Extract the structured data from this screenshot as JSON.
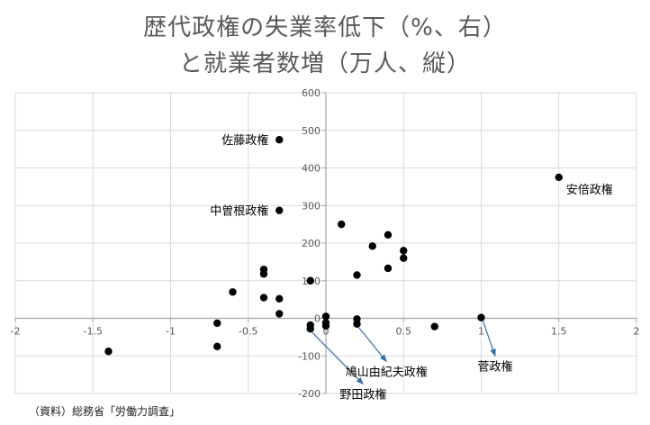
{
  "source": "（資料）総務省「労働力調査」",
  "chart_data": {
    "type": "scatter",
    "title_lines": [
      "歴代政権の失業率低下（%、右）",
      "と就業者数増（万人、縦）"
    ],
    "xlim": [
      -2,
      2
    ],
    "ylim": [
      -200,
      600
    ],
    "x_ticks": [
      -2,
      -1.5,
      -1,
      -0.5,
      0,
      0.5,
      1,
      1.5,
      2
    ],
    "x_tick_labels": [
      "-2",
      "-1.5",
      "-1",
      "-0.5",
      "0",
      "0.5",
      "1",
      "1.5",
      "2"
    ],
    "y_ticks": [
      -200,
      -100,
      0,
      100,
      200,
      300,
      400,
      500,
      600
    ],
    "y_tick_labels": [
      "-200",
      "-100",
      "0",
      "100",
      "200",
      "300",
      "400",
      "500",
      "600"
    ],
    "grid": true,
    "points": [
      {
        "x": -1.4,
        "y": -88
      },
      {
        "x": -0.7,
        "y": -13
      },
      {
        "x": -0.7,
        "y": -75
      },
      {
        "x": -0.6,
        "y": 70
      },
      {
        "x": -0.4,
        "y": 130
      },
      {
        "x": -0.4,
        "y": 118
      },
      {
        "x": -0.4,
        "y": 55
      },
      {
        "x": -0.3,
        "y": 475
      },
      {
        "x": -0.3,
        "y": 287
      },
      {
        "x": -0.3,
        "y": 52
      },
      {
        "x": -0.3,
        "y": 12
      },
      {
        "x": -0.1,
        "y": 100
      },
      {
        "x": -0.1,
        "y": -18
      },
      {
        "x": -0.1,
        "y": -28
      },
      {
        "x": 0.0,
        "y": 5
      },
      {
        "x": 0.0,
        "y": -12
      },
      {
        "x": 0.0,
        "y": -20
      },
      {
        "x": 0.1,
        "y": 250
      },
      {
        "x": 0.2,
        "y": 115
      },
      {
        "x": 0.2,
        "y": -2
      },
      {
        "x": 0.2,
        "y": -15
      },
      {
        "x": 0.3,
        "y": 192
      },
      {
        "x": 0.4,
        "y": 222
      },
      {
        "x": 0.4,
        "y": 133
      },
      {
        "x": 0.5,
        "y": 180
      },
      {
        "x": 0.5,
        "y": 160
      },
      {
        "x": 0.7,
        "y": -22
      },
      {
        "x": 1.0,
        "y": 2
      },
      {
        "x": 1.5,
        "y": 375
      }
    ],
    "annotations": [
      {
        "label": "佐藤政権",
        "x": -0.3,
        "y": 475,
        "side": "left"
      },
      {
        "label": "中曽根政権",
        "x": -0.3,
        "y": 287,
        "side": "left"
      },
      {
        "label": "安倍政権",
        "x": 1.5,
        "y": 375,
        "side": "below-right"
      },
      {
        "label": "鳩山由紀夫政権",
        "x": 0.2,
        "y": -15,
        "side": "arrow",
        "arrow_to": [
          0.39,
          -115
        ]
      },
      {
        "label": "菅政権",
        "x": 1.0,
        "y": 2,
        "side": "arrow",
        "arrow_to": [
          1.09,
          -100
        ]
      },
      {
        "label": "野田政権",
        "x": -0.1,
        "y": -28,
        "side": "arrow",
        "arrow_to": [
          0.24,
          -175
        ]
      }
    ]
  }
}
